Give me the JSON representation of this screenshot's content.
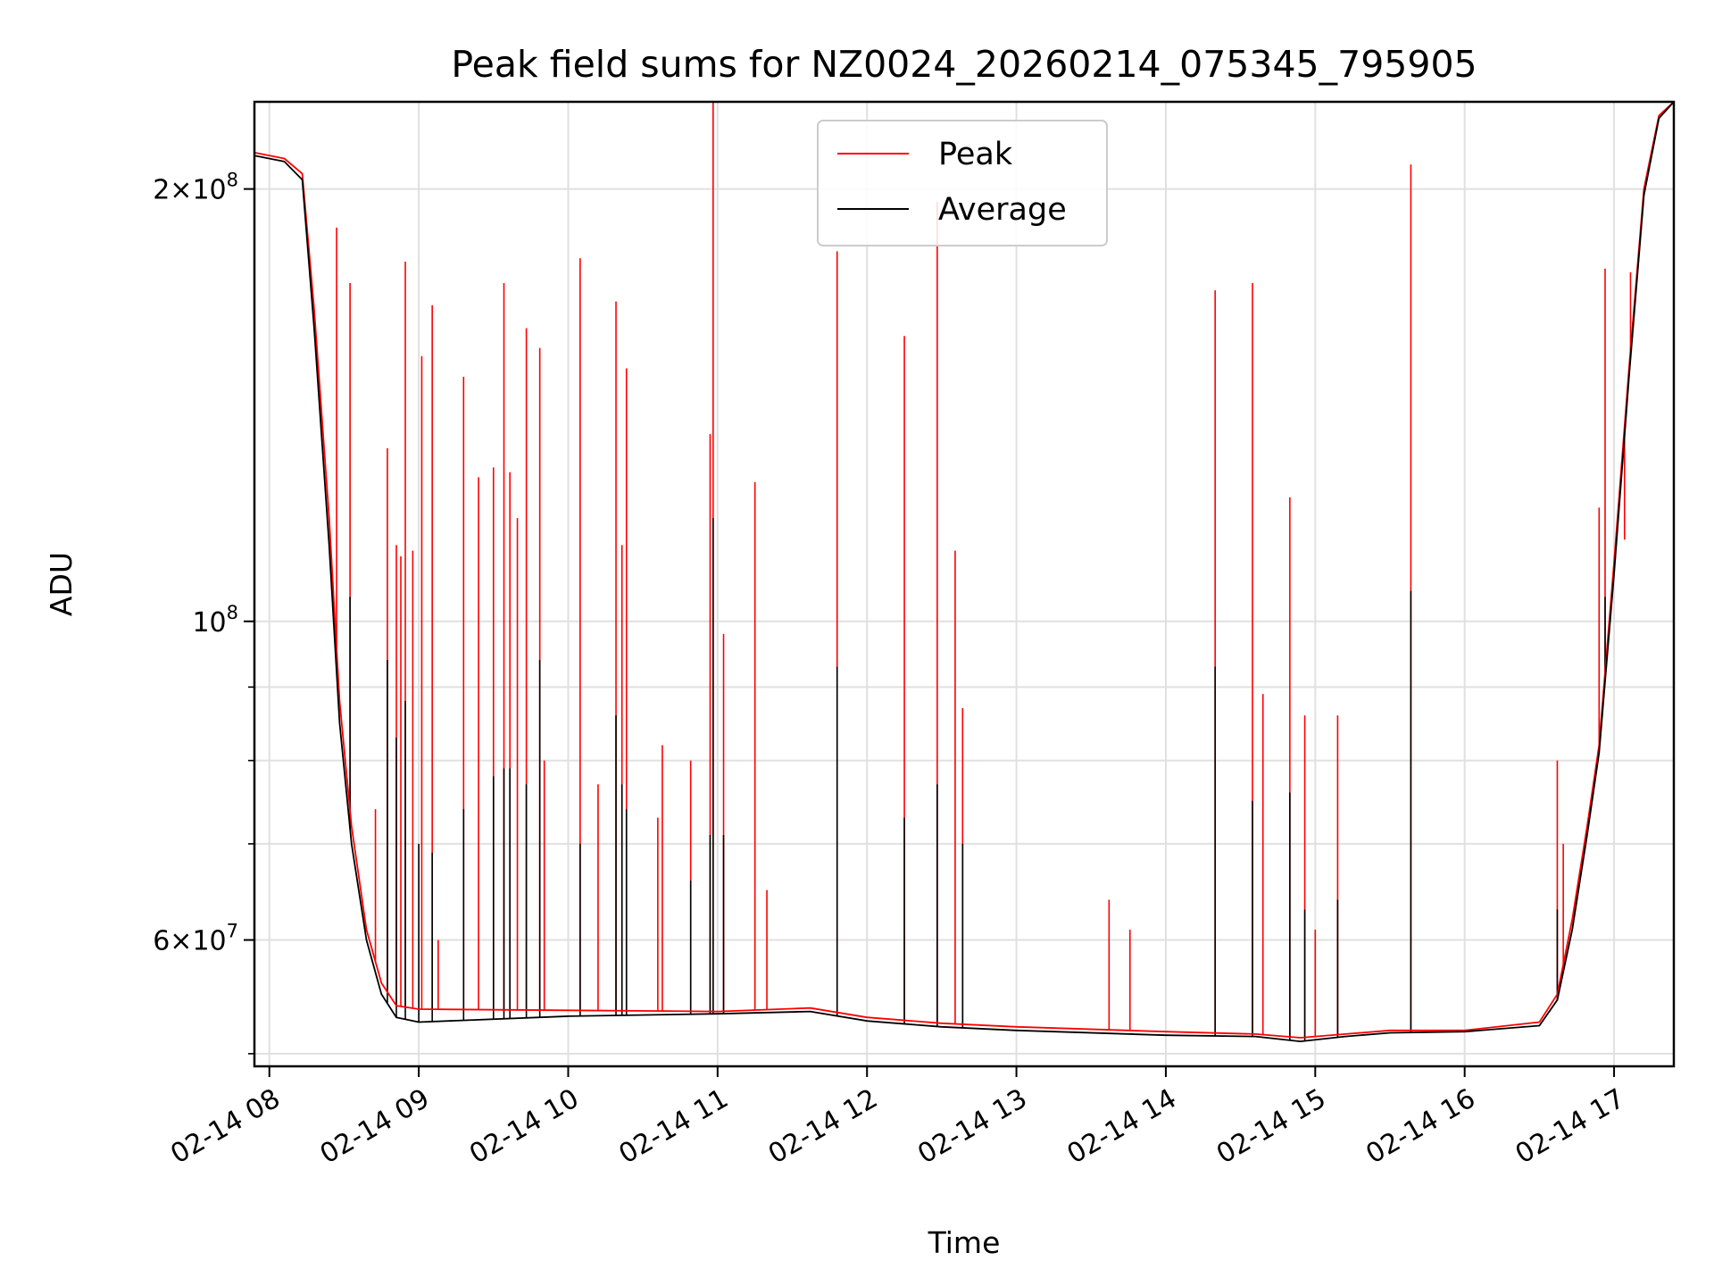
{
  "chart_data": {
    "type": "line",
    "title": "Peak field sums for NZ0024_20260214_075345_795905",
    "xlabel": "Time",
    "ylabel": "ADU",
    "yscale": "log",
    "grid": true,
    "legend_position": "top-center",
    "xlim_hours": [
      7.9,
      17.4
    ],
    "ylim": [
      49000000,
      230000000
    ],
    "x_ticks": [
      {
        "value": 8,
        "label": "02-14 08"
      },
      {
        "value": 9,
        "label": "02-14 09"
      },
      {
        "value": 10,
        "label": "02-14 10"
      },
      {
        "value": 11,
        "label": "02-14 11"
      },
      {
        "value": 12,
        "label": "02-14 12"
      },
      {
        "value": 13,
        "label": "02-14 13"
      },
      {
        "value": 14,
        "label": "02-14 14"
      },
      {
        "value": 15,
        "label": "02-14 15"
      },
      {
        "value": 16,
        "label": "02-14 16"
      },
      {
        "value": 17,
        "label": "02-14 17"
      }
    ],
    "y_major_ticks": [
      {
        "value": 60000000,
        "mantissa": "6",
        "exponent": "7"
      },
      {
        "value": 100000000,
        "mantissa": "",
        "exponent": "8"
      },
      {
        "value": 200000000,
        "mantissa": "2",
        "exponent": "8"
      }
    ],
    "y_minor_ticks": [
      50000000,
      70000000,
      80000000,
      90000000,
      300000000
    ],
    "series": [
      {
        "name": "Peak",
        "color": "#ff0000",
        "baseline": [
          [
            7.9,
            212000000
          ],
          [
            8.1,
            210000000
          ],
          [
            8.22,
            205000000
          ],
          [
            8.3,
            165000000
          ],
          [
            8.4,
            118000000
          ],
          [
            8.47,
            88000000
          ],
          [
            8.55,
            72000000
          ],
          [
            8.65,
            61000000
          ],
          [
            8.75,
            56000000
          ],
          [
            8.85,
            54000000
          ],
          [
            9.0,
            53700000
          ],
          [
            10.0,
            53600000
          ],
          [
            11.0,
            53500000
          ],
          [
            11.62,
            53800000
          ],
          [
            12.0,
            53000000
          ],
          [
            12.5,
            52500000
          ],
          [
            13.0,
            52200000
          ],
          [
            14.0,
            51800000
          ],
          [
            14.6,
            51600000
          ],
          [
            14.9,
            51300000
          ],
          [
            15.2,
            51600000
          ],
          [
            15.5,
            51900000
          ],
          [
            16.0,
            51900000
          ],
          [
            16.5,
            52600000
          ],
          [
            16.62,
            55000000
          ],
          [
            16.72,
            62000000
          ],
          [
            16.82,
            72000000
          ],
          [
            16.9,
            82000000
          ],
          [
            17.0,
            110000000
          ],
          [
            17.1,
            150000000
          ],
          [
            17.2,
            200000000
          ],
          [
            17.3,
            225000000
          ],
          [
            17.4,
            230000000
          ]
        ],
        "spikes": [
          [
            8.45,
            188000000
          ],
          [
            8.54,
            172000000
          ],
          [
            8.71,
            74000000
          ],
          [
            8.79,
            132000000
          ],
          [
            8.85,
            113000000
          ],
          [
            8.88,
            111000000
          ],
          [
            8.91,
            178000000
          ],
          [
            8.96,
            112000000
          ],
          [
            9.02,
            153000000
          ],
          [
            9.09,
            166000000
          ],
          [
            9.13,
            60000000
          ],
          [
            9.3,
            148000000
          ],
          [
            9.4,
            126000000
          ],
          [
            9.5,
            128000000
          ],
          [
            9.57,
            172000000
          ],
          [
            9.61,
            127000000
          ],
          [
            9.66,
            118000000
          ],
          [
            9.72,
            160000000
          ],
          [
            9.81,
            155000000
          ],
          [
            9.84,
            80000000
          ],
          [
            10.08,
            179000000
          ],
          [
            10.2,
            77000000
          ],
          [
            10.32,
            167000000
          ],
          [
            10.36,
            113000000
          ],
          [
            10.39,
            150000000
          ],
          [
            10.6,
            73000000
          ],
          [
            10.63,
            82000000
          ],
          [
            10.82,
            80000000
          ],
          [
            10.95,
            135000000
          ],
          [
            10.97,
            232000000
          ],
          [
            11.04,
            98000000
          ],
          [
            11.25,
            125000000
          ],
          [
            11.33,
            65000000
          ],
          [
            11.8,
            181000000
          ],
          [
            12.25,
            158000000
          ],
          [
            12.47,
            196000000
          ],
          [
            12.59,
            112000000
          ],
          [
            12.64,
            87000000
          ],
          [
            13.62,
            64000000
          ],
          [
            13.76,
            61000000
          ],
          [
            14.33,
            170000000
          ],
          [
            14.58,
            172000000
          ],
          [
            14.65,
            89000000
          ],
          [
            14.83,
            122000000
          ],
          [
            14.93,
            86000000
          ],
          [
            15.0,
            61000000
          ],
          [
            15.15,
            86000000
          ],
          [
            15.64,
            208000000
          ],
          [
            16.62,
            80000000
          ],
          [
            16.66,
            70000000
          ],
          [
            16.9,
            120000000
          ],
          [
            16.94,
            176000000
          ],
          [
            17.07,
            114000000
          ],
          [
            17.11,
            175000000
          ]
        ]
      },
      {
        "name": "Average",
        "color": "#000000",
        "baseline": [
          [
            7.9,
            211000000
          ],
          [
            8.1,
            209000000
          ],
          [
            8.22,
            203000000
          ],
          [
            8.3,
            160000000
          ],
          [
            8.4,
            113000000
          ],
          [
            8.47,
            85000000
          ],
          [
            8.55,
            70000000
          ],
          [
            8.65,
            60000000
          ],
          [
            8.75,
            55000000
          ],
          [
            8.85,
            53000000
          ],
          [
            9.0,
            52600000
          ],
          [
            10.0,
            53100000
          ],
          [
            11.0,
            53300000
          ],
          [
            11.62,
            53500000
          ],
          [
            12.0,
            52700000
          ],
          [
            12.5,
            52200000
          ],
          [
            13.0,
            51900000
          ],
          [
            14.0,
            51500000
          ],
          [
            14.6,
            51400000
          ],
          [
            14.9,
            51000000
          ],
          [
            15.2,
            51400000
          ],
          [
            15.5,
            51700000
          ],
          [
            16.0,
            51800000
          ],
          [
            16.5,
            52300000
          ],
          [
            16.62,
            54500000
          ],
          [
            16.72,
            61000000
          ],
          [
            16.82,
            71000000
          ],
          [
            16.9,
            81000000
          ],
          [
            17.0,
            108000000
          ],
          [
            17.1,
            148000000
          ],
          [
            17.2,
            198000000
          ],
          [
            17.3,
            224000000
          ],
          [
            17.4,
            230000000
          ]
        ],
        "spikes": [
          [
            8.54,
            104000000
          ],
          [
            8.79,
            94000000
          ],
          [
            8.85,
            83000000
          ],
          [
            8.91,
            88000000
          ],
          [
            9.0,
            70000000
          ],
          [
            9.09,
            69000000
          ],
          [
            9.3,
            74000000
          ],
          [
            9.5,
            78000000
          ],
          [
            9.57,
            79000000
          ],
          [
            9.61,
            79000000
          ],
          [
            9.72,
            77000000
          ],
          [
            9.81,
            94000000
          ],
          [
            10.08,
            70000000
          ],
          [
            10.32,
            86000000
          ],
          [
            10.36,
            77000000
          ],
          [
            10.39,
            74000000
          ],
          [
            10.82,
            66000000
          ],
          [
            10.95,
            71000000
          ],
          [
            10.97,
            118000000
          ],
          [
            11.04,
            71000000
          ],
          [
            11.8,
            93000000
          ],
          [
            12.25,
            73000000
          ],
          [
            12.47,
            77000000
          ],
          [
            12.64,
            70000000
          ],
          [
            14.33,
            93000000
          ],
          [
            14.58,
            75000000
          ],
          [
            14.83,
            76000000
          ],
          [
            14.93,
            63000000
          ],
          [
            15.15,
            64000000
          ],
          [
            15.64,
            105000000
          ],
          [
            16.62,
            63000000
          ],
          [
            16.94,
            104000000
          ]
        ]
      }
    ]
  }
}
